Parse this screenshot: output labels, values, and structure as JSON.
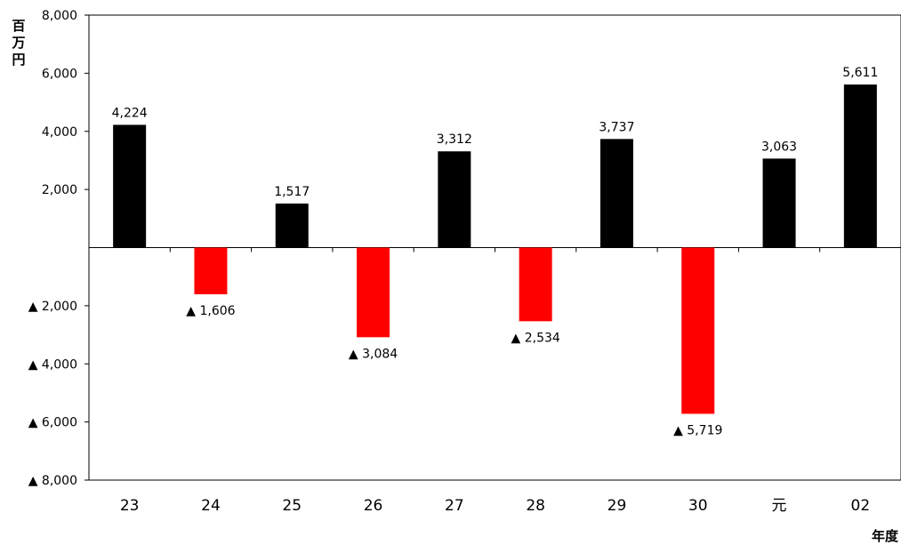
{
  "chart_data": {
    "type": "bar",
    "categories": [
      "23",
      "24",
      "25",
      "26",
      "27",
      "28",
      "29",
      "30",
      "元",
      "02"
    ],
    "values": [
      4224,
      -1606,
      1517,
      -3084,
      3312,
      -2534,
      3737,
      -5719,
      3063,
      5611
    ],
    "data_labels": [
      "4,224",
      "▲ 1,606",
      "1,517",
      "▲ 3,084",
      "3,312",
      "▲ 2,534",
      "3,737",
      "▲ 5,719",
      "3,063",
      "5,611"
    ],
    "ylim": [
      -8000,
      8000
    ],
    "yticks": [
      {
        "value": 8000,
        "label": "8,000"
      },
      {
        "value": 6000,
        "label": "6,000"
      },
      {
        "value": 4000,
        "label": "4,000"
      },
      {
        "value": 2000,
        "label": "2,000"
      },
      {
        "value": -2000,
        "label": "▲ 2,000"
      },
      {
        "value": -4000,
        "label": "▲ 4,000"
      },
      {
        "value": -6000,
        "label": "▲ 6,000"
      },
      {
        "value": -8000,
        "label": "▲ 8,000"
      }
    ],
    "ylabel": "百万円",
    "xlabel": "年度",
    "grid": false,
    "colors": {
      "positive": "#000000",
      "negative": "#ff0000"
    }
  }
}
